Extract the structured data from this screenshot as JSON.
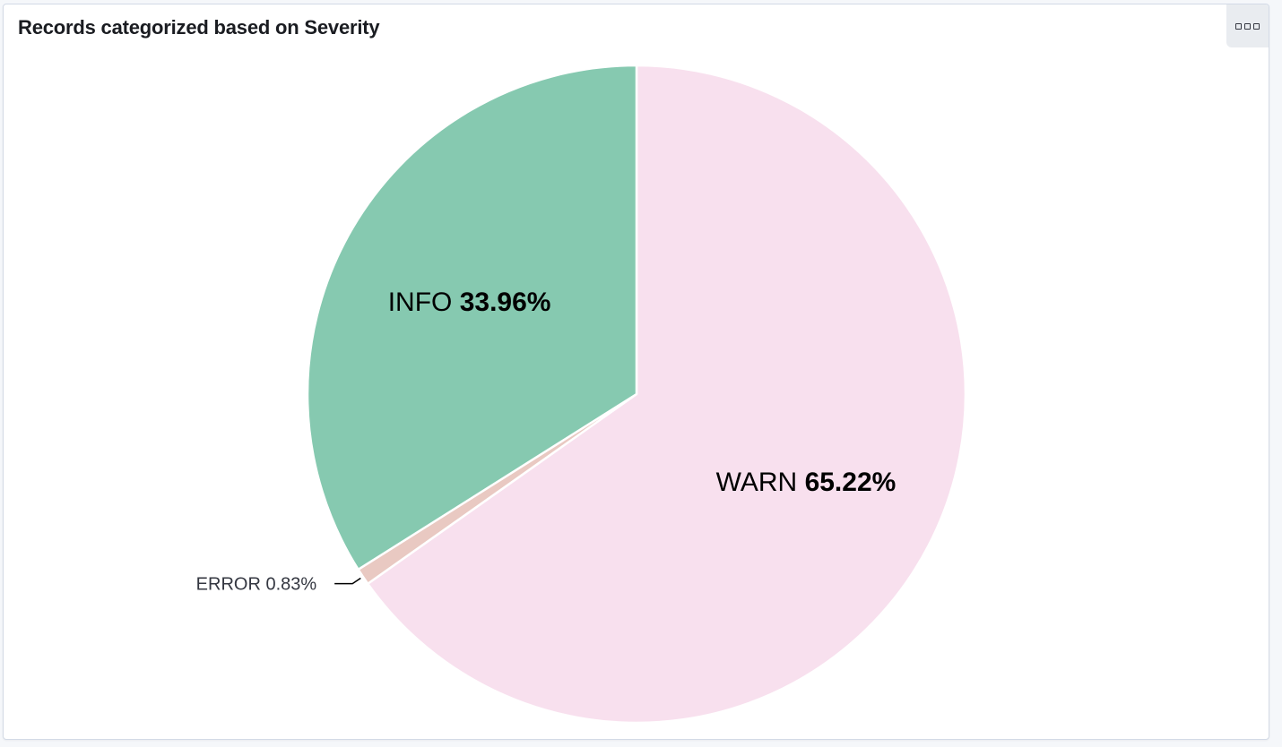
{
  "panel": {
    "title": "Records categorized based on Severity",
    "options_icon": "ellipsis-icon"
  },
  "chart_data": {
    "type": "pie",
    "title": "Records categorized based on Severity",
    "slices": [
      {
        "label": "WARN",
        "value": 65.22,
        "value_label": "65.22%",
        "color": "#f8e0ee"
      },
      {
        "label": "ERROR",
        "value": 0.83,
        "value_label": "0.83%",
        "color": "#e9c9c2"
      },
      {
        "label": "INFO",
        "value": 33.96,
        "value_label": "33.96%",
        "color": "#86c9b0"
      }
    ]
  }
}
